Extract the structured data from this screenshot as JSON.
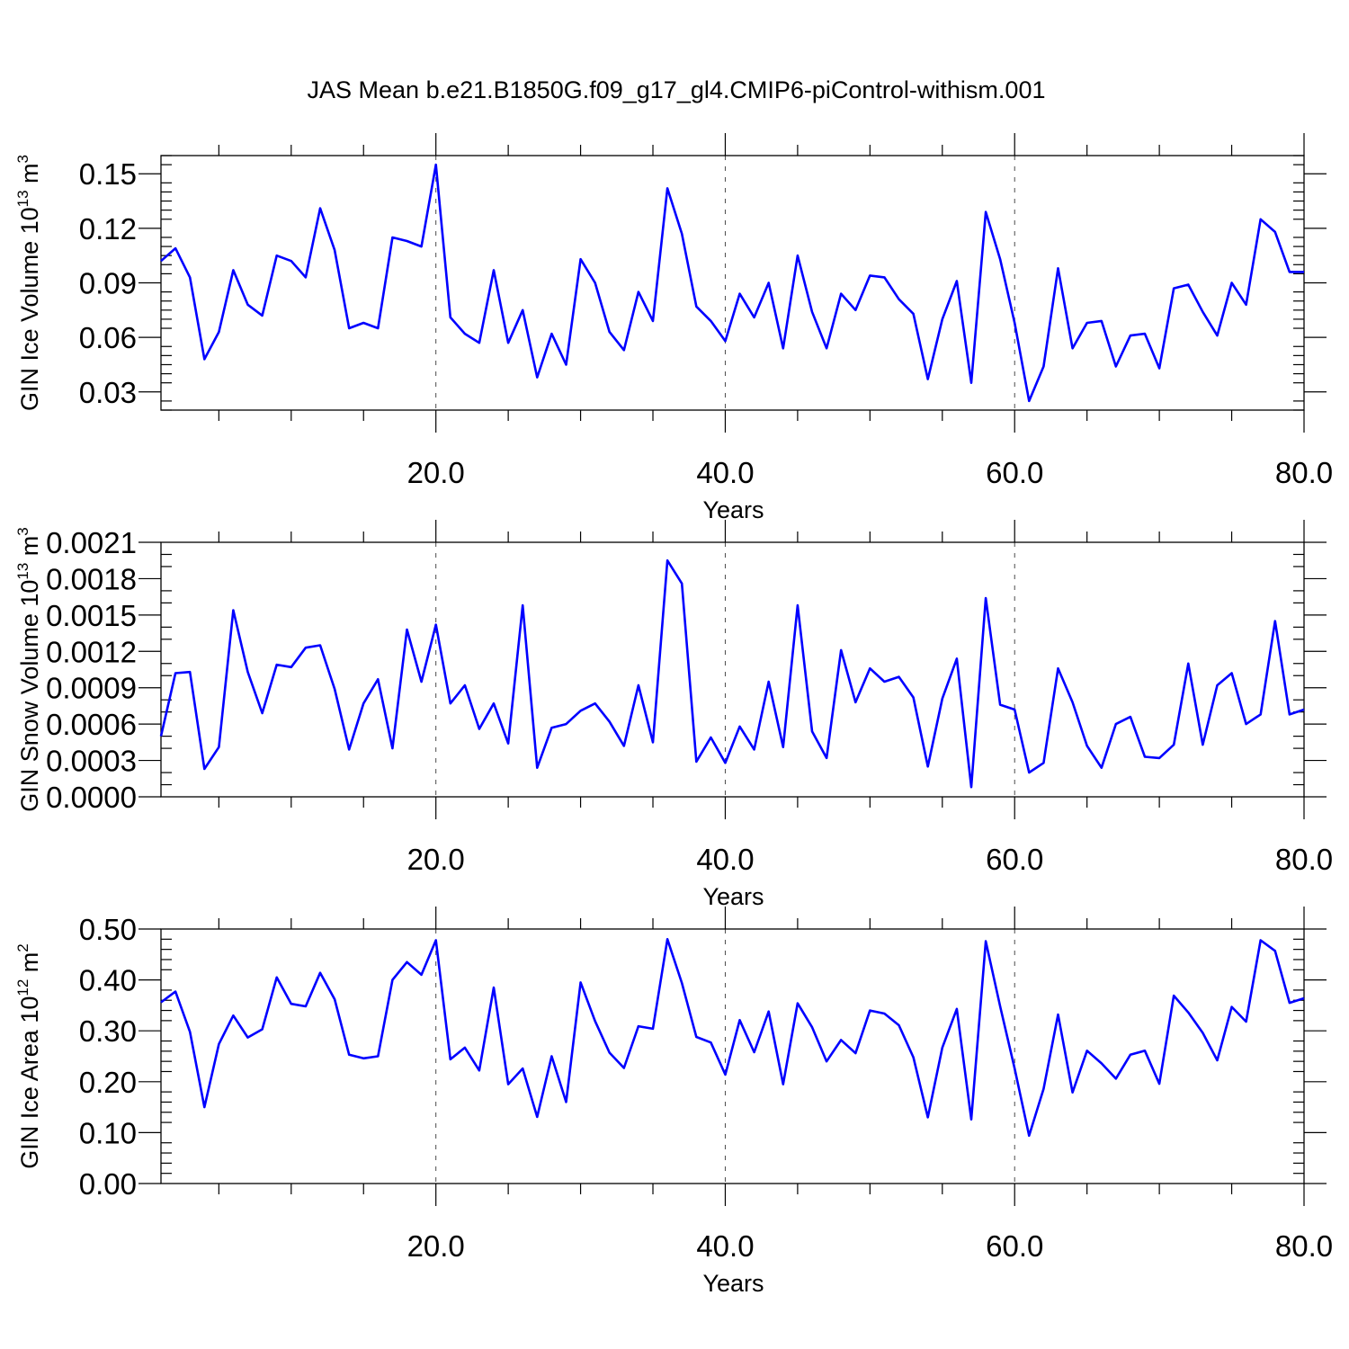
{
  "title": "JAS Mean b.e21.B1850G.f09_g17_gl4.CMIP6-piControl-withism.001",
  "chart_data": [
    {
      "type": "line",
      "ylabel": "GIN Ice Volume 10",
      "ylabel_sup": "13",
      "ylabel_unit": " m",
      "ylabel_unit_sup": "3",
      "xlabel": "Years",
      "xlim": [
        1,
        80
      ],
      "ylim": [
        0.02,
        0.16
      ],
      "yticks": [
        "0.03",
        "0.06",
        "0.09",
        "0.12",
        "0.15"
      ],
      "ytick_values": [
        0.03,
        0.06,
        0.09,
        0.12,
        0.15
      ],
      "ylim_minor": 0.005,
      "xticks": [
        "20.0",
        "40.0",
        "60.0",
        "80.0"
      ],
      "xtick_values": [
        20,
        40,
        60,
        80
      ],
      "x_minor": 5,
      "grid": "vertical dashed at major x ticks",
      "color": "#0000ff",
      "x_start": 1,
      "values": [
        0.102,
        0.109,
        0.093,
        0.048,
        0.063,
        0.097,
        0.078,
        0.072,
        0.105,
        0.102,
        0.093,
        0.131,
        0.108,
        0.065,
        0.068,
        0.065,
        0.115,
        0.113,
        0.11,
        0.155,
        0.071,
        0.062,
        0.057,
        0.097,
        0.057,
        0.075,
        0.038,
        0.062,
        0.045,
        0.103,
        0.09,
        0.063,
        0.053,
        0.085,
        0.069,
        0.142,
        0.117,
        0.077,
        0.069,
        0.058,
        0.084,
        0.071,
        0.09,
        0.054,
        0.105,
        0.074,
        0.054,
        0.084,
        0.075,
        0.094,
        0.093,
        0.081,
        0.073,
        0.037,
        0.07,
        0.091,
        0.035,
        0.129,
        0.103,
        0.068,
        0.025,
        0.044,
        0.098,
        0.054,
        0.068,
        0.069,
        0.044,
        0.061,
        0.062,
        0.043,
        0.087,
        0.089,
        0.074,
        0.061,
        0.09,
        0.078,
        0.125,
        0.118,
        0.096,
        0.096
      ]
    },
    {
      "type": "line",
      "ylabel": "GIN Snow Volume 10",
      "ylabel_sup": "13",
      "ylabel_unit": " m",
      "ylabel_unit_sup": "3",
      "xlabel": "Years",
      "xlim": [
        1,
        80
      ],
      "ylim": [
        0.0,
        0.0021
      ],
      "yticks": [
        "0.0000",
        "0.0003",
        "0.0006",
        "0.0009",
        "0.0012",
        "0.0015",
        "0.0018",
        "0.0021"
      ],
      "ytick_values": [
        0.0,
        0.0003,
        0.0006,
        0.0009,
        0.0012,
        0.0015,
        0.0018,
        0.0021
      ],
      "ylim_minor": 0.0001,
      "xticks": [
        "20.0",
        "40.0",
        "60.0",
        "80.0"
      ],
      "xtick_values": [
        20,
        40,
        60,
        80
      ],
      "x_minor": 5,
      "grid": "vertical dashed at major x ticks",
      "color": "#0000ff",
      "x_start": 1,
      "values": [
        0.0005,
        0.00102,
        0.00103,
        0.00023,
        0.00041,
        0.00154,
        0.00103,
        0.00069,
        0.00109,
        0.00107,
        0.00123,
        0.00125,
        0.00089,
        0.00039,
        0.00077,
        0.00097,
        0.0004,
        0.00138,
        0.00095,
        0.00142,
        0.00077,
        0.00092,
        0.00056,
        0.00077,
        0.00044,
        0.00158,
        0.00024,
        0.00057,
        0.0006,
        0.00071,
        0.00077,
        0.00062,
        0.00042,
        0.00092,
        0.00045,
        0.00195,
        0.00176,
        0.00029,
        0.00049,
        0.00028,
        0.00058,
        0.00039,
        0.00095,
        0.00041,
        0.00158,
        0.00054,
        0.00032,
        0.00121,
        0.00078,
        0.00106,
        0.00095,
        0.00099,
        0.00082,
        0.00025,
        0.00081,
        0.00114,
        8e-05,
        0.00164,
        0.00076,
        0.00072,
        0.0002,
        0.00028,
        0.00106,
        0.00078,
        0.00042,
        0.00024,
        0.0006,
        0.00066,
        0.00033,
        0.00032,
        0.00043,
        0.0011,
        0.00043,
        0.00092,
        0.00102,
        0.0006,
        0.00068,
        0.00145,
        0.00068,
        0.00072
      ]
    },
    {
      "type": "line",
      "ylabel": "GIN Ice Area 10",
      "ylabel_sup": "12",
      "ylabel_unit": " m",
      "ylabel_unit_sup": "2",
      "xlabel": "Years",
      "xlim": [
        1,
        80
      ],
      "ylim": [
        0.0,
        0.5
      ],
      "yticks": [
        "0.00",
        "0.10",
        "0.20",
        "0.30",
        "0.40",
        "0.50"
      ],
      "ytick_values": [
        0.0,
        0.1,
        0.2,
        0.3,
        0.4,
        0.5
      ],
      "ylim_minor": 0.02,
      "xticks": [
        "20.0",
        "40.0",
        "60.0",
        "80.0"
      ],
      "xtick_values": [
        20,
        40,
        60,
        80
      ],
      "x_minor": 5,
      "grid": "vertical dashed at major x ticks",
      "color": "#0000ff",
      "x_start": 1,
      "values": [
        0.356,
        0.377,
        0.298,
        0.15,
        0.274,
        0.33,
        0.287,
        0.303,
        0.405,
        0.353,
        0.348,
        0.414,
        0.362,
        0.253,
        0.246,
        0.25,
        0.4,
        0.435,
        0.41,
        0.478,
        0.244,
        0.267,
        0.222,
        0.385,
        0.195,
        0.226,
        0.131,
        0.25,
        0.16,
        0.395,
        0.319,
        0.257,
        0.227,
        0.309,
        0.304,
        0.48,
        0.394,
        0.288,
        0.277,
        0.214,
        0.321,
        0.258,
        0.338,
        0.195,
        0.354,
        0.307,
        0.24,
        0.282,
        0.256,
        0.34,
        0.334,
        0.311,
        0.248,
        0.13,
        0.267,
        0.343,
        0.126,
        0.476,
        0.348,
        0.226,
        0.094,
        0.186,
        0.332,
        0.179,
        0.261,
        0.236,
        0.206,
        0.253,
        0.261,
        0.196,
        0.369,
        0.336,
        0.296,
        0.242,
        0.347,
        0.318,
        0.478,
        0.457,
        0.355,
        0.364
      ]
    }
  ]
}
